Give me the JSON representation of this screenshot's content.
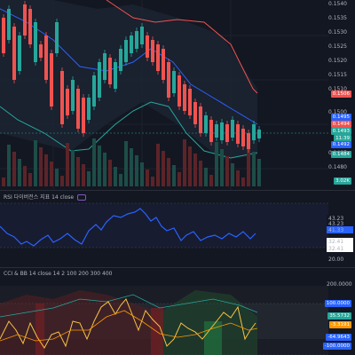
{
  "price_axis": {
    "ticks": [
      "0.1540",
      "0.1535",
      "0.1530",
      "0.1525",
      "0.1520",
      "0.1515",
      "0.1510",
      "0.1500",
      "0.1485",
      "0.1480"
    ]
  },
  "price_badges": {
    "upper_band": "0.1506",
    "level_a": "0.1495",
    "level_b": "0.1494",
    "last_price": "0.1493",
    "countdown": "11:39",
    "level_c": "0.1492",
    "lower_band": "0.1484",
    "volume": "3.02K"
  },
  "rsi": {
    "title": "RSI 다이버전스 지표 14 close",
    "axis": [
      "43.23",
      "43.23",
      "41.33",
      "32.41",
      "32.41",
      "20.00"
    ]
  },
  "cci": {
    "title": "CCI & BB 14 close 14 2 100 200 300 400",
    "axis": [
      "200.0000",
      "100.0000",
      "35.5732",
      "-3.3191",
      "-64.9643",
      "-100.0000"
    ]
  },
  "colors": {
    "up": "#26a69a",
    "down": "#ef5350",
    "ma_blue": "#2962ff",
    "band_red": "#ef5350",
    "band_green": "#26a69a",
    "rsi_line": "#2962ff",
    "cci_line": "#f6c343",
    "cci_orange": "#ff9800"
  }
}
